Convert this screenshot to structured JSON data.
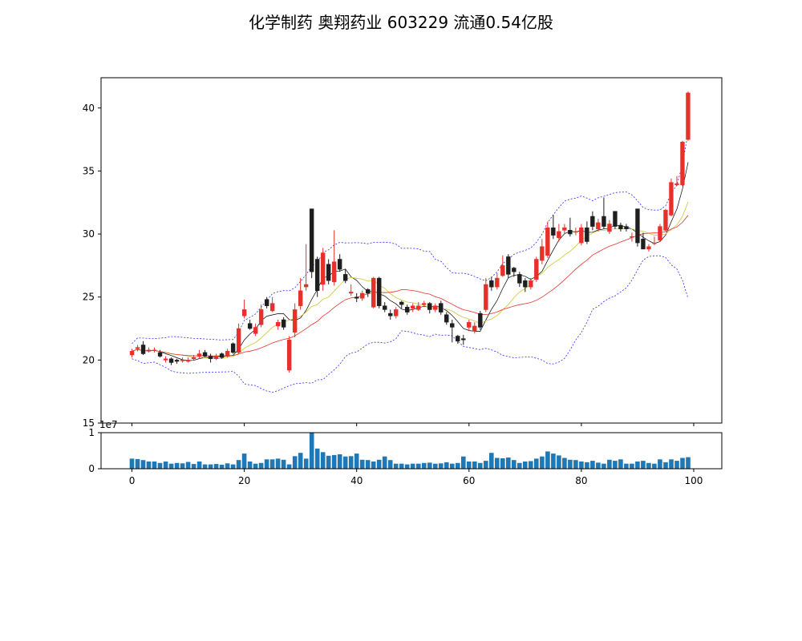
{
  "chart_data": {
    "type": "candlestick",
    "title": "化学制药 奥翔药业 603229 流通0.54亿股",
    "colors": {
      "up": "#e8302a",
      "down": "#1e1e1e",
      "ma_short": "#000000",
      "ma_mid": "#c8c832",
      "ma_long": "#e8302a",
      "bollinger": "#2b2bff",
      "volume": "#1f77b4"
    },
    "price_axis": {
      "ylim": [
        15,
        42.4
      ],
      "ticks": [
        "15",
        "20",
        "25",
        "30",
        "35",
        "40"
      ]
    },
    "volume_axis": {
      "ylim": [
        0,
        1.0
      ],
      "ticks": [
        "0",
        "1"
      ],
      "offset_label": "1e7"
    },
    "x_axis": {
      "xlim": [
        -5.5,
        105
      ],
      "ticks": [
        "0",
        "20",
        "40",
        "60",
        "80",
        "100"
      ]
    },
    "x": [
      0,
      1,
      2,
      3,
      4,
      5,
      6,
      7,
      8,
      9,
      10,
      11,
      12,
      13,
      14,
      15,
      16,
      17,
      18,
      19,
      20,
      21,
      22,
      23,
      24,
      25,
      26,
      27,
      28,
      29,
      30,
      31,
      32,
      33,
      34,
      35,
      36,
      37,
      38,
      39,
      40,
      41,
      42,
      43,
      44,
      45,
      46,
      47,
      48,
      49,
      50,
      51,
      52,
      53,
      54,
      55,
      56,
      57,
      58,
      59,
      60,
      61,
      62,
      63,
      64,
      65,
      66,
      67,
      68,
      69,
      70,
      71,
      72,
      73,
      74,
      75,
      76,
      77,
      78,
      79,
      80,
      81,
      82,
      83,
      84,
      85,
      86,
      87,
      88,
      89,
      90,
      91,
      92,
      93,
      94,
      95,
      96,
      97,
      98,
      99
    ],
    "close": [
      20.7,
      21.0,
      20.5,
      20.8,
      20.8,
      20.3,
      20.1,
      19.8,
      19.9,
      20.0,
      20.0,
      20.2,
      20.5,
      20.3,
      20.1,
      20.3,
      20.2,
      20.7,
      20.6,
      22.5,
      24.0,
      22.5,
      22.6,
      24.0,
      24.3,
      24.5,
      23.0,
      22.6,
      21.6,
      24.0,
      25.5,
      26.0,
      27.0,
      25.5,
      28.5,
      26.3,
      27.8,
      27.2,
      26.3,
      25.4,
      24.9,
      25.3,
      25.3,
      26.5,
      24.3,
      24.0,
      23.5,
      24.0,
      24.4,
      23.8,
      24.3,
      24.3,
      24.5,
      24.0,
      24.3,
      23.8,
      23.0,
      22.6,
      21.5,
      21.6,
      23.0,
      22.7,
      22.6,
      26.0,
      25.8,
      26.5,
      27.5,
      26.8,
      27.0,
      26.1,
      25.8,
      26.3,
      28.0,
      29.0,
      30.5,
      29.9,
      30.2,
      30.5,
      30.0,
      30.2,
      30.5,
      29.4,
      30.6,
      30.9,
      30.6,
      30.8,
      30.6,
      30.4,
      30.4,
      29.8,
      29.3,
      28.8,
      29.0,
      29.3,
      30.6,
      31.9,
      34.1,
      34.0,
      37.3,
      41.2
    ],
    "open": [
      20.4,
      20.9,
      21.2,
      20.7,
      20.8,
      20.6,
      20.0,
      20.1,
      20.0,
      20.0,
      19.9,
      20.1,
      20.3,
      20.6,
      20.3,
      20.1,
      20.5,
      20.3,
      21.3,
      20.6,
      23.5,
      22.9,
      22.1,
      22.8,
      24.8,
      23.9,
      22.7,
      23.2,
      19.2,
      22.2,
      24.3,
      25.8,
      32.0,
      28.0,
      26.0,
      27.6,
      26.2,
      28.0,
      26.8,
      25.3,
      25.0,
      24.9,
      25.6,
      24.2,
      26.5,
      24.3,
      23.7,
      23.5,
      24.6,
      24.2,
      24.1,
      24.0,
      24.4,
      24.5,
      24.0,
      24.5,
      23.6,
      22.9,
      21.9,
      21.7,
      22.6,
      22.3,
      23.7,
      24.0,
      26.3,
      25.8,
      26.7,
      28.2,
      27.3,
      26.8,
      26.3,
      25.8,
      26.4,
      27.9,
      28.3,
      30.5,
      29.7,
      30.3,
      30.3,
      30.2,
      29.3,
      30.5,
      31.4,
      30.4,
      31.4,
      30.2,
      31.8,
      30.7,
      30.6,
      29.8,
      32.0,
      29.6,
      28.8,
      29.3,
      29.5,
      30.3,
      31.5,
      33.9,
      33.9,
      37.5
    ],
    "high": [
      20.9,
      21.2,
      21.5,
      21.0,
      21.0,
      20.8,
      20.3,
      20.2,
      20.1,
      20.2,
      20.2,
      20.4,
      20.8,
      20.8,
      20.5,
      20.5,
      20.6,
      20.9,
      21.4,
      22.9,
      24.8,
      23.2,
      22.9,
      24.4,
      25.0,
      25.0,
      23.2,
      23.4,
      21.9,
      24.5,
      26.5,
      29.2,
      32.0,
      28.2,
      28.9,
      28.0,
      30.3,
      28.4,
      27.2,
      26.0,
      25.3,
      25.5,
      25.7,
      26.6,
      26.6,
      24.6,
      24.0,
      24.2,
      24.7,
      24.4,
      24.5,
      24.6,
      24.7,
      24.6,
      24.5,
      24.7,
      23.8,
      23.2,
      22.0,
      22.0,
      23.2,
      23.0,
      23.9,
      26.5,
      26.6,
      26.9,
      28.3,
      28.4,
      27.4,
      27.0,
      26.5,
      26.5,
      28.2,
      29.6,
      31.0,
      31.5,
      30.8,
      30.8,
      31.3,
      30.5,
      30.8,
      31.0,
      31.8,
      31.2,
      32.9,
      31.1,
      31.8,
      30.9,
      30.8,
      30.1,
      32.0,
      30.1,
      29.2,
      29.8,
      30.8,
      32.0,
      34.4,
      34.6,
      37.4,
      41.3
    ],
    "low": [
      20.2,
      20.7,
      20.4,
      20.6,
      20.6,
      20.2,
      19.8,
      19.6,
      19.7,
      19.8,
      19.8,
      20.0,
      20.1,
      20.2,
      19.8,
      20.0,
      20.1,
      20.2,
      20.5,
      20.5,
      23.3,
      22.4,
      21.9,
      22.6,
      24.1,
      23.8,
      22.4,
      22.4,
      19.0,
      21.8,
      24.0,
      25.5,
      26.5,
      25.0,
      25.5,
      26.0,
      25.9,
      27.0,
      26.1,
      25.1,
      24.6,
      24.7,
      25.0,
      24.1,
      24.1,
      23.8,
      23.2,
      23.3,
      24.1,
      23.6,
      23.8,
      23.9,
      24.2,
      23.7,
      23.8,
      23.6,
      22.8,
      21.4,
      21.3,
      21.2,
      22.3,
      22.1,
      22.4,
      23.8,
      25.5,
      25.6,
      26.6,
      26.5,
      26.6,
      25.8,
      25.4,
      25.6,
      26.2,
      27.6,
      28.1,
      29.6,
      29.4,
      30.0,
      29.8,
      29.9,
      29.1,
      29.2,
      30.3,
      30.2,
      30.4,
      30.0,
      30.4,
      30.2,
      30.2,
      29.4,
      29.0,
      28.8,
      28.6,
      29.1,
      29.4,
      30.2,
      31.4,
      33.8,
      33.8,
      37.4
    ],
    "volume": [
      0.28,
      0.27,
      0.24,
      0.2,
      0.2,
      0.16,
      0.2,
      0.14,
      0.16,
      0.15,
      0.19,
      0.13,
      0.2,
      0.12,
      0.12,
      0.13,
      0.11,
      0.15,
      0.12,
      0.24,
      0.42,
      0.2,
      0.14,
      0.16,
      0.26,
      0.26,
      0.28,
      0.25,
      0.12,
      0.35,
      0.44,
      0.28,
      1.0,
      0.56,
      0.46,
      0.36,
      0.38,
      0.4,
      0.34,
      0.35,
      0.42,
      0.25,
      0.24,
      0.2,
      0.25,
      0.34,
      0.24,
      0.14,
      0.14,
      0.12,
      0.14,
      0.14,
      0.16,
      0.17,
      0.14,
      0.15,
      0.18,
      0.14,
      0.16,
      0.34,
      0.2,
      0.2,
      0.16,
      0.22,
      0.44,
      0.3,
      0.29,
      0.31,
      0.24,
      0.16,
      0.2,
      0.21,
      0.28,
      0.34,
      0.48,
      0.42,
      0.37,
      0.3,
      0.25,
      0.24,
      0.2,
      0.18,
      0.22,
      0.17,
      0.14,
      0.25,
      0.22,
      0.26,
      0.14,
      0.14,
      0.2,
      0.22,
      0.16,
      0.14,
      0.26,
      0.18,
      0.26,
      0.22,
      0.3,
      0.32
    ]
  }
}
